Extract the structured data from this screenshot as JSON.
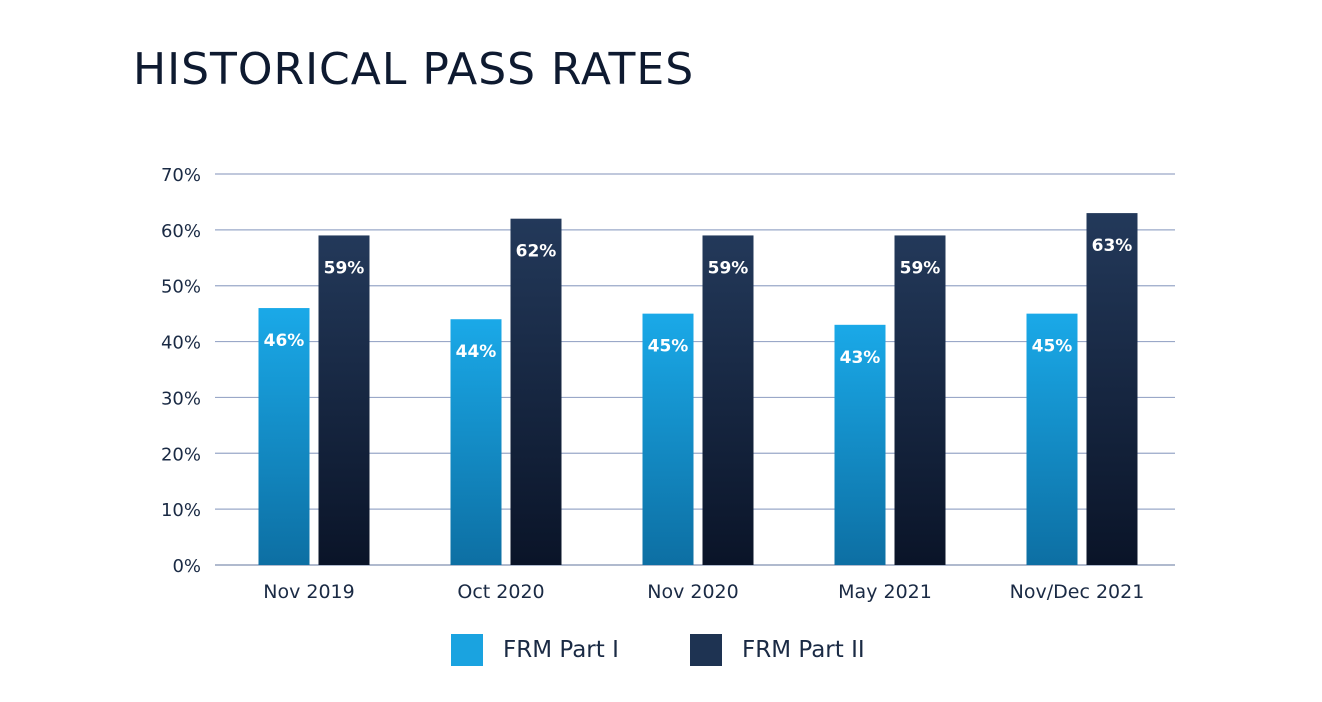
{
  "chart_data": {
    "type": "bar",
    "title": "HISTORICAL PASS RATES",
    "categories": [
      "Nov 2019",
      "Oct 2020",
      "Nov 2020",
      "May 2021",
      "Nov/Dec 2021"
    ],
    "series": [
      {
        "name": "FRM Part I",
        "values": [
          46,
          44,
          45,
          43,
          45
        ],
        "labels": [
          "46%",
          "44%",
          "45%",
          "43%",
          "45%"
        ],
        "color": "#1aa3e0"
      },
      {
        "name": "FRM Part II",
        "values": [
          59,
          62,
          59,
          59,
          63
        ],
        "labels": [
          "59%",
          "62%",
          "59%",
          "59%",
          "63%"
        ],
        "color": "#1e3352"
      }
    ],
    "ylim": [
      0,
      70
    ],
    "yticks": [
      0,
      10,
      20,
      30,
      40,
      50,
      60,
      70
    ],
    "ytick_labels": [
      "0%",
      "10%",
      "20%",
      "30%",
      "40%",
      "50%",
      "60%",
      "70%"
    ],
    "grid": true,
    "legend": "bottom-center"
  }
}
